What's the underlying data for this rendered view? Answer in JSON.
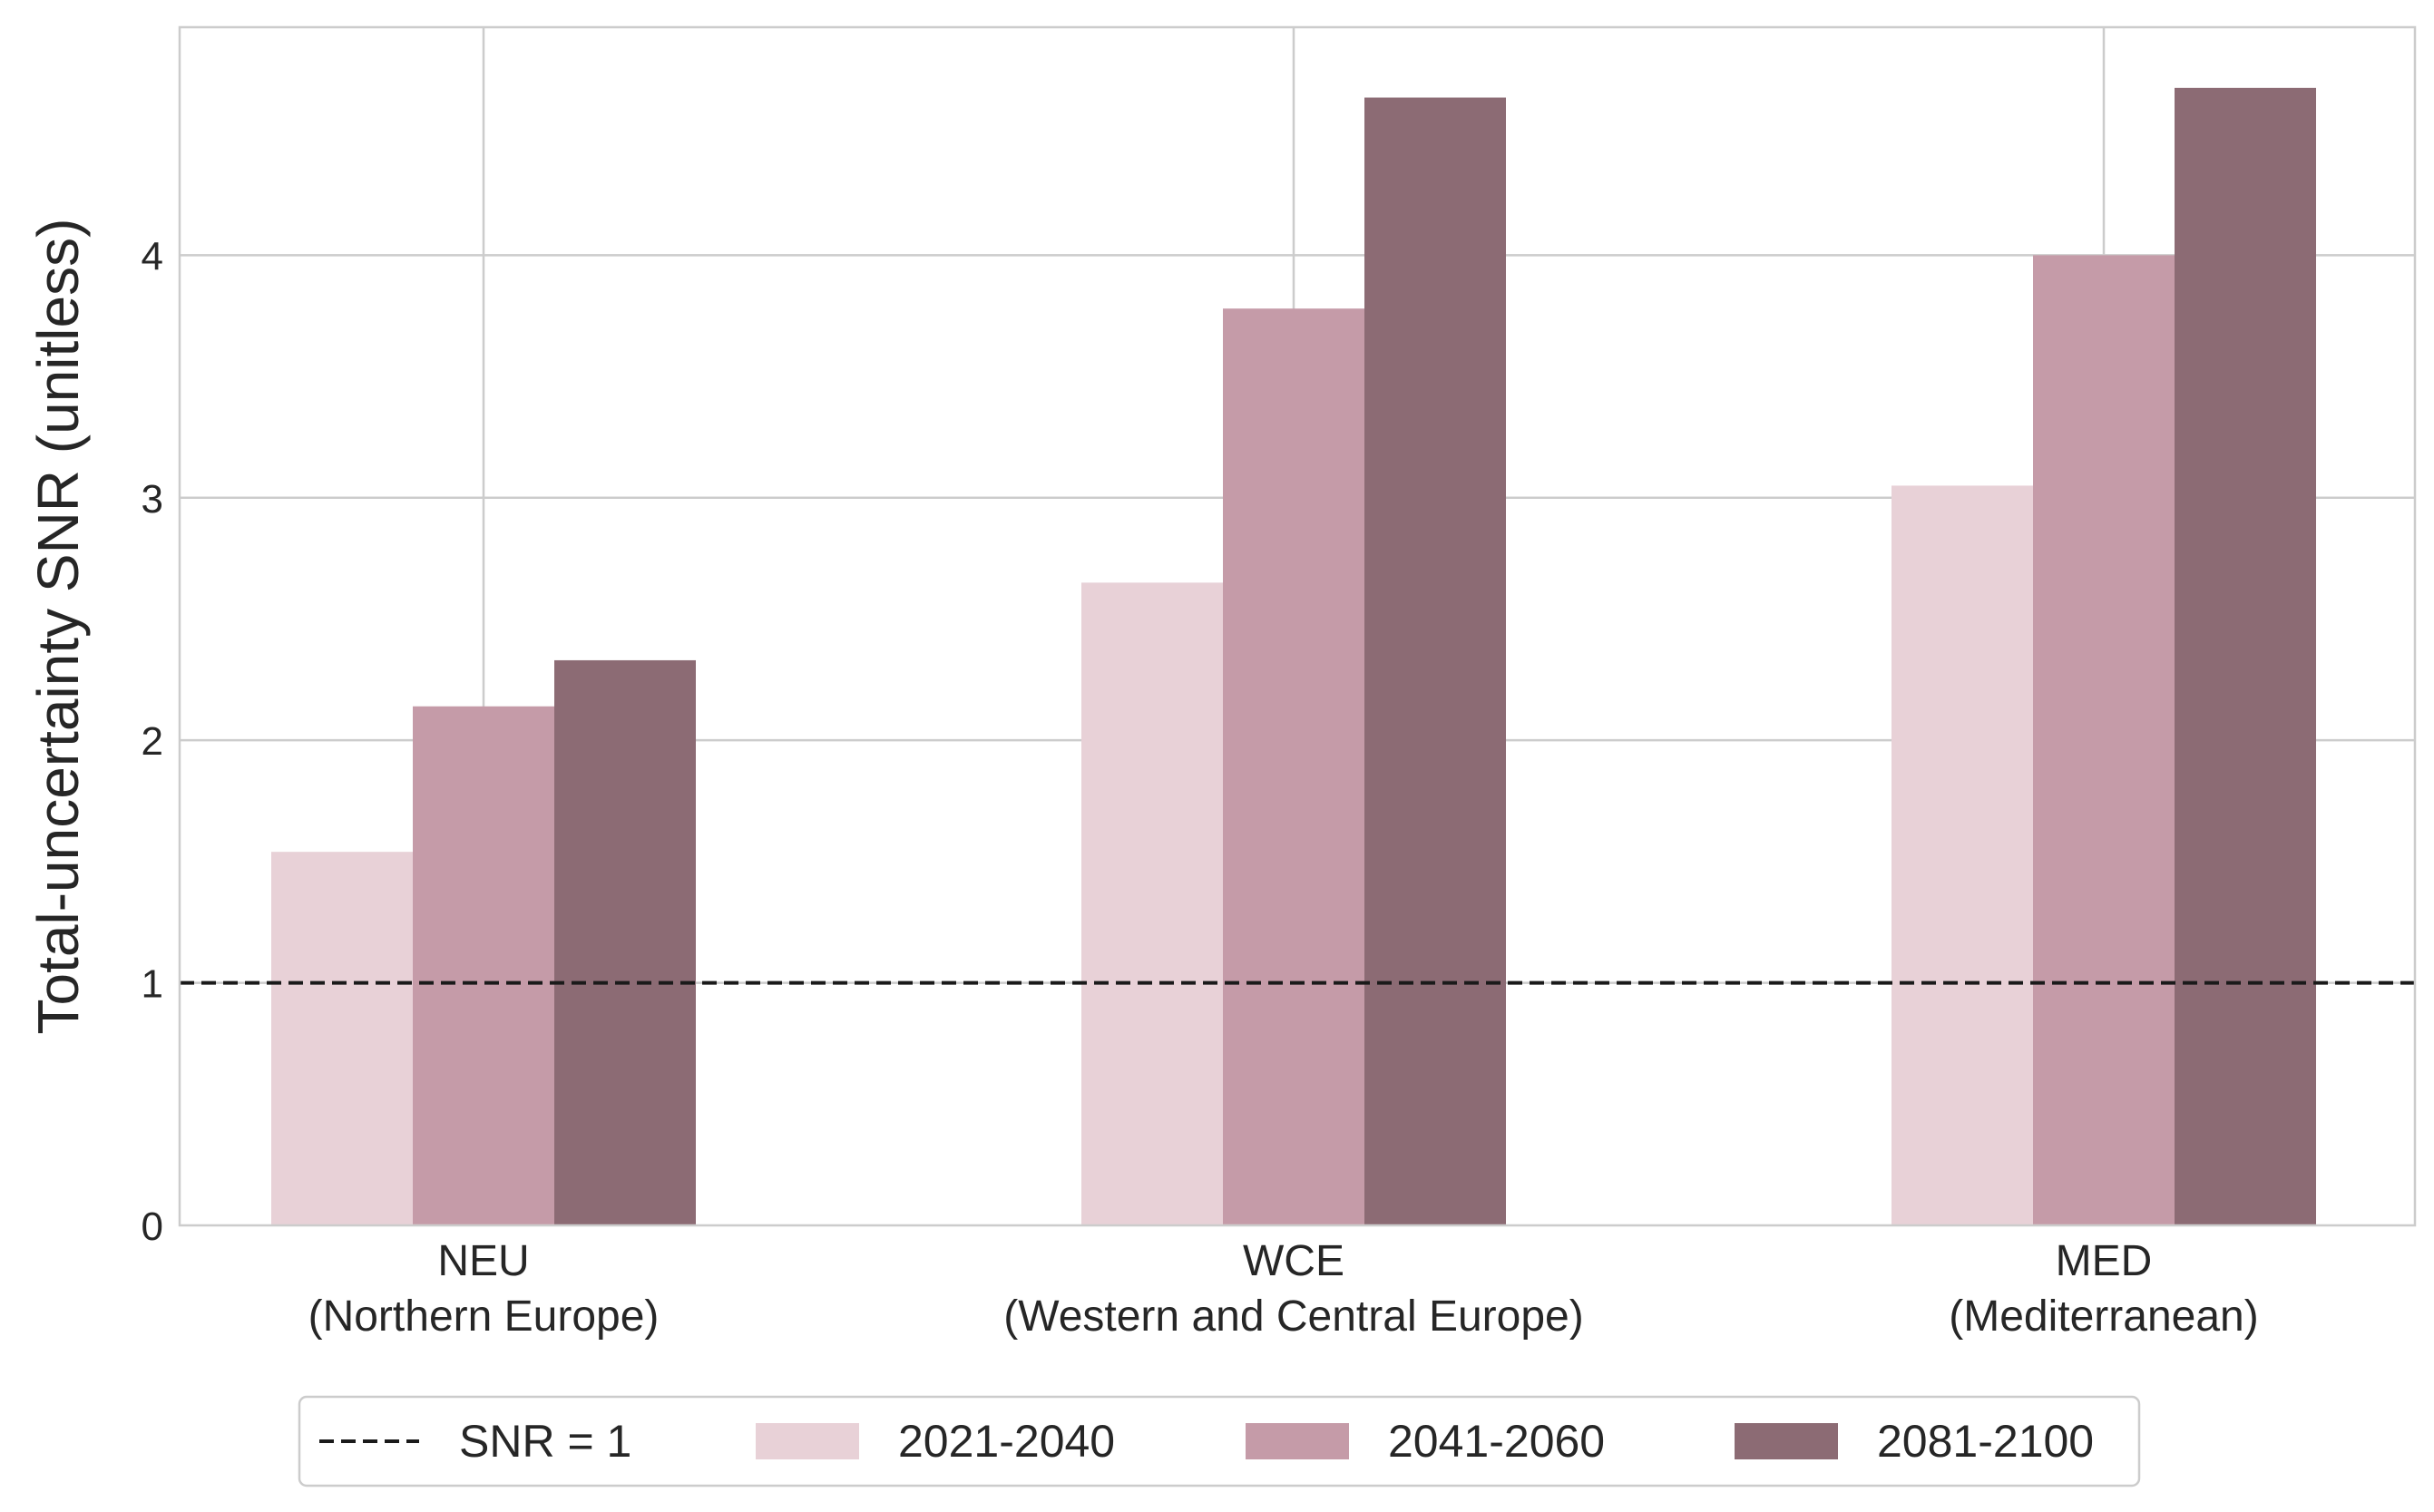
{
  "chart_data": {
    "type": "bar",
    "title": "",
    "xlabel": "",
    "ylabel": "Total-uncertainty SNR (unitless)",
    "categories": [
      {
        "code": "NEU",
        "name": "(Northern Europe)"
      },
      {
        "code": "WCE",
        "name": "(Western and Central Europe)"
      },
      {
        "code": "MED",
        "name": "(Mediterranean)"
      }
    ],
    "series": [
      {
        "name": "2021-2040",
        "color": "#e8d1d7",
        "values": [
          1.54,
          2.65,
          3.05
        ]
      },
      {
        "name": "2041-2060",
        "color": "#c59ba8",
        "values": [
          2.14,
          3.78,
          4.0
        ]
      },
      {
        "name": "2081-2100",
        "color": "#8c6b74",
        "values": [
          2.33,
          4.65,
          4.69
        ]
      }
    ],
    "reference_line": {
      "label": "SNR = 1",
      "value": 1,
      "style": "dashed",
      "color": "#1a1a1a"
    },
    "ylim": [
      0,
      4.94
    ],
    "yticks": [
      0,
      1,
      2,
      3,
      4
    ],
    "grid": true,
    "legend_position": "bottom-center"
  }
}
